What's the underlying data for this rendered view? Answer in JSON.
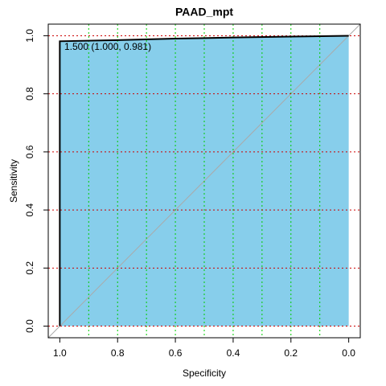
{
  "chart_data": {
    "type": "roc",
    "title": "PAAD_mpt",
    "xlabel": "Specificity",
    "ylabel": "Sensitivity",
    "annotation": "1.500 (1.000, 0.981)",
    "x": [
      1.0,
      1.0,
      0.8,
      0.6,
      0.4,
      0.2,
      0.0
    ],
    "values": [
      0.0,
      0.981,
      0.985,
      0.99,
      0.994,
      0.997,
      1.0
    ],
    "color": "#000000",
    "fill": "#87ceeb",
    "diagonal_color": "#aaaaaa",
    "xlim": [
      1.04,
      -0.04
    ],
    "ylim": [
      -0.04,
      1.04
    ],
    "xticks": [
      {
        "value": 1,
        "label": "1.0"
      },
      0.8,
      0.6,
      0.4,
      0.2,
      {
        "value": 0,
        "label": "0.0"
      }
    ],
    "yticks": [
      {
        "value": 0,
        "label": "0.0"
      },
      0.2,
      0.4,
      0.6,
      0.8,
      {
        "value": 1,
        "label": "1.0"
      }
    ],
    "xgrid": [
      0.9,
      0.8,
      0.7,
      0.6,
      0.5,
      0.4,
      0.3,
      0.2,
      0.1
    ],
    "xgrid_color": "#00cc00",
    "ygrid": [
      0,
      0.2,
      0.4,
      0.6,
      0.8,
      1
    ],
    "ygrid_color": "#cc0000"
  }
}
